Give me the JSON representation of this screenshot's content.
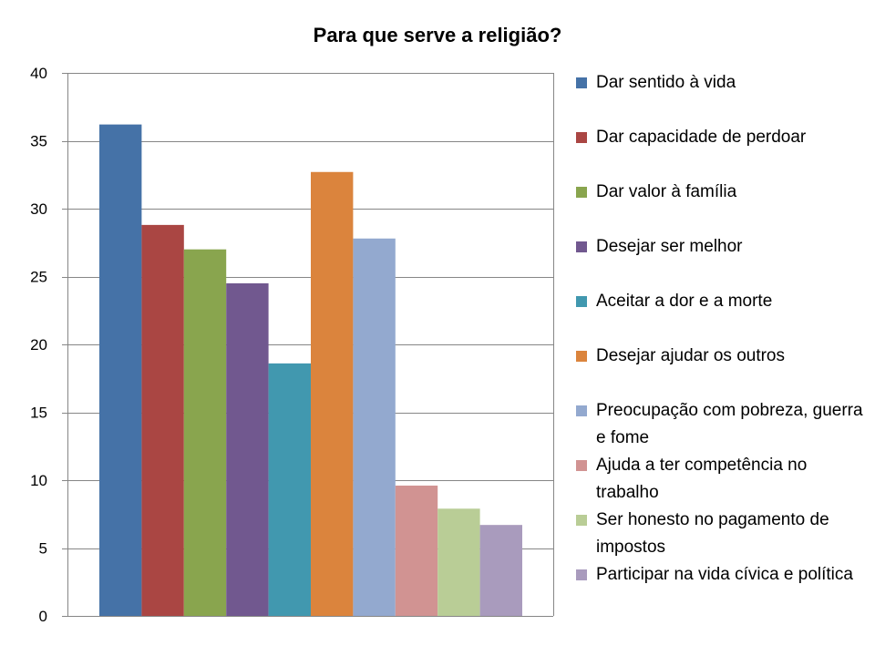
{
  "chart_data": {
    "type": "bar",
    "title": "Para que serve a religião?",
    "xlabel": "",
    "ylabel": "",
    "ylim": [
      0,
      40
    ],
    "yticks": [
      0,
      5,
      10,
      15,
      20,
      25,
      30,
      35,
      40
    ],
    "grid": true,
    "legend_position": "right",
    "series": [
      {
        "name": "Dar sentido à vida",
        "value": 36.2,
        "color": "#4572A7"
      },
      {
        "name": "Dar capacidade de perdoar",
        "value": 28.8,
        "color": "#AA4643"
      },
      {
        "name": "Dar valor à família",
        "value": 27.0,
        "color": "#89A54E"
      },
      {
        "name": "Desejar ser melhor",
        "value": 24.5,
        "color": "#71588F"
      },
      {
        "name": "Aceitar a dor e a morte",
        "value": 18.6,
        "color": "#4198AF"
      },
      {
        "name": "Desejar ajudar os outros",
        "value": 32.7,
        "color": "#DB843D"
      },
      {
        "name": "Preocupação com pobreza, guerra e fome",
        "value": 27.8,
        "color": "#93A9CF"
      },
      {
        "name": "Ajuda a ter competência no trabalho",
        "value": 9.6,
        "color": "#D19392"
      },
      {
        "name": "Ser honesto no pagamento de impostos",
        "value": 7.9,
        "color": "#B9CD96"
      },
      {
        "name": "Participar na vida cívica e política",
        "value": 6.7,
        "color": "#A99BBD"
      }
    ]
  }
}
